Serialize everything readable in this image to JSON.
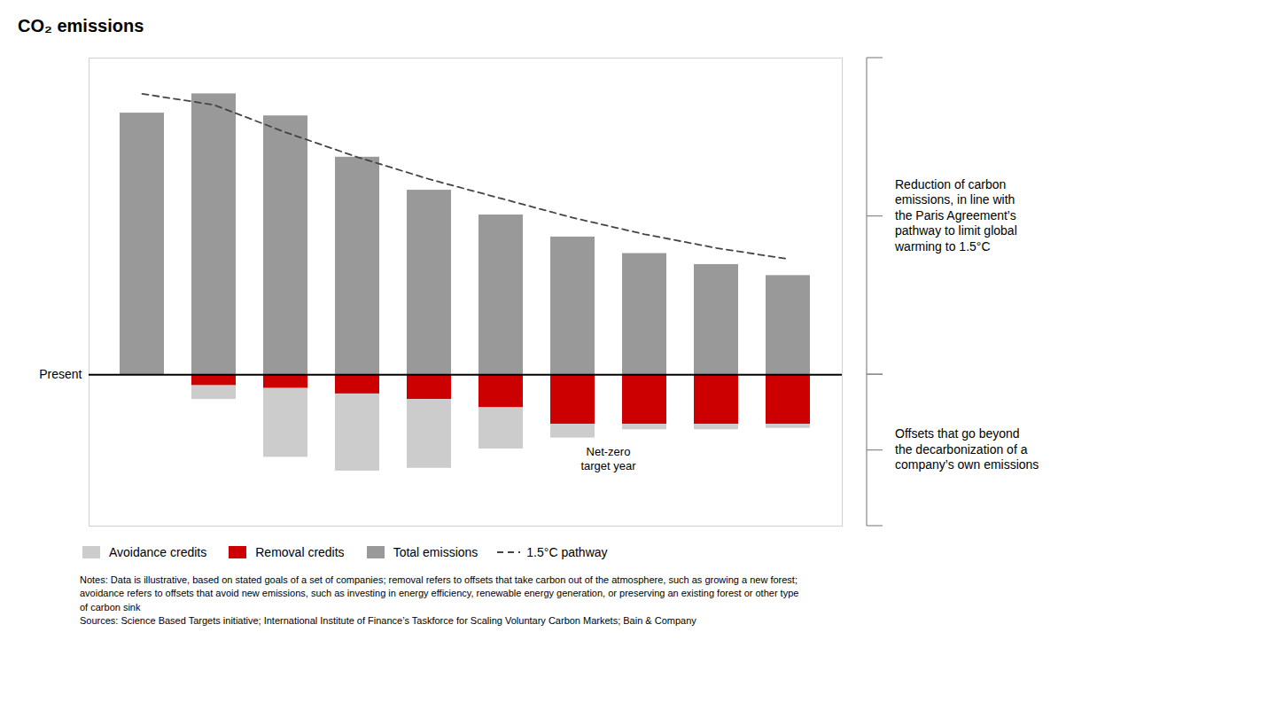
{
  "chart_data": {
    "type": "bar",
    "stacked": true,
    "title": "CO₂ emissions",
    "categories": [
      null,
      null,
      null,
      null,
      null,
      null,
      null,
      null,
      null,
      null
    ],
    "series": [
      {
        "name": "Avoidance credits",
        "color": "#cccccc",
        "values": [
          0.0,
          -0.5,
          -2.5,
          -2.8,
          -2.5,
          -1.5,
          -0.5,
          -0.2,
          -0.2,
          -0.15
        ]
      },
      {
        "name": "Removal credits",
        "color": "#cc0000",
        "values": [
          0.0,
          -0.4,
          -0.5,
          -0.7,
          -0.9,
          -1.2,
          -1.8,
          -1.8,
          -1.8,
          -1.8
        ]
      },
      {
        "name": "Total emissions",
        "color": "#999999",
        "values": [
          9.5,
          10.2,
          9.4,
          7.9,
          6.7,
          5.8,
          5.0,
          4.4,
          4.0,
          3.6
        ]
      },
      {
        "name": "1.5°C pathway",
        "type": "line",
        "line_style": "dashed",
        "color": "#444444",
        "values": [
          10.2,
          9.8,
          8.8,
          7.9,
          7.1,
          6.4,
          5.7,
          5.1,
          4.6,
          4.2
        ]
      }
    ],
    "ylim": [
      -5.5,
      11.5
    ],
    "tick_labels": false,
    "grid": false,
    "legend": "lower left",
    "annotations": [
      {
        "text": "Present",
        "y": 0
      },
      {
        "text": "Net-zero\ntarget year",
        "x": 6
      },
      {
        "text": "Reduction of carbon\nemissions, in line with\nthe Paris Agreement’s\npathway to limit global\nwarming to 1.5°C",
        "ymin": 0,
        "ymax": 11.5
      },
      {
        "text": "Offsets that go beyond\nthe decarbonization of a\ncompany’s own emissions",
        "ymin": -5.5,
        "ymax": 0
      }
    ],
    "notes": [
      "Notes: Data is illustrative, based on stated goals of a set of companies; removal refers to offsets that take carbon out of the atmosphere, such as growing a new forest;",
      "avoidance refers to offsets that avoid new emissions, such as investing in energy efficiency, renewable energy generation, or preserving an existing forest or other type",
      "of carbon sink",
      "Sources: Science Based Targets initiative; International Institute of Finance’s Taskforce for Scaling Voluntary Carbon Markets; Bain & Company"
    ]
  }
}
